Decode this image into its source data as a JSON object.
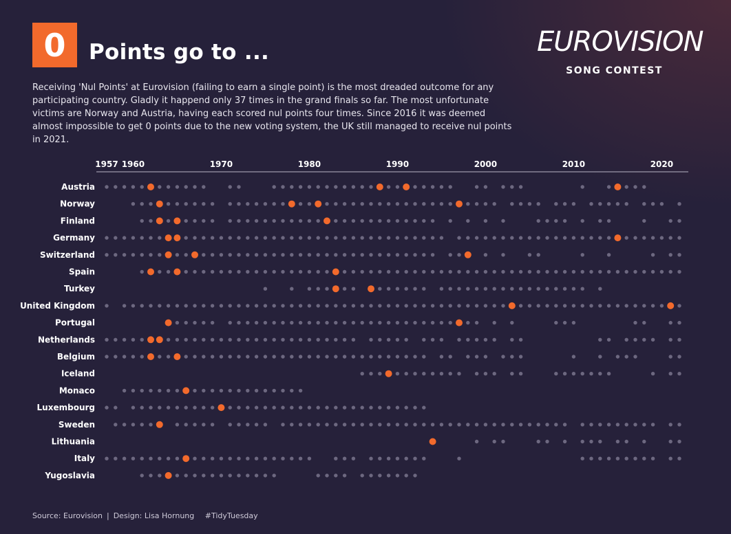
{
  "header": {
    "badge": "0",
    "title": "Points go to ...",
    "description": "Receiving 'Nul Points' at Eurovision (failing to earn a single point) is the most dreaded outcome for any participating country. Gladly it happend only 37 times in the grand finals so far. The most unfortunate victims are Norway and Austria, having each scored nul points four times. Since 2016 it was deemed almost impossible to get 0 points due to the new voting system, the UK still managed to receive nul points in 2021."
  },
  "logo": {
    "word": "EUROVISION",
    "sub": "SONG CONTEST"
  },
  "footer": {
    "source": "Source: Eurovision",
    "design": "Design: Lisa Hornung",
    "tag": "#TidyTuesday"
  },
  "colors": {
    "background": "#26213a",
    "accent": "#f26a2c",
    "participation": "#6d6880",
    "axis": "#b9b5c6"
  },
  "chart_data": {
    "type": "scatter",
    "xlim": [
      1957,
      2022
    ],
    "x_ticks": [
      1957,
      1960,
      1970,
      1980,
      1990,
      2000,
      2010,
      2020
    ],
    "grid": false,
    "rows": [
      {
        "country": "Austria",
        "ranges": [
          [
            1957,
            1968
          ],
          [
            1971,
            1972
          ],
          [
            1976,
            1996
          ],
          [
            1999,
            2000
          ],
          [
            2002,
            2004
          ],
          [
            2011,
            2011
          ],
          [
            2014,
            2018
          ]
        ],
        "nul": [
          1962,
          1988,
          1991,
          2015
        ]
      },
      {
        "country": "Norway",
        "ranges": [
          [
            1960,
            1969
          ],
          [
            1971,
            2001
          ],
          [
            2003,
            2006
          ],
          [
            2008,
            2010
          ],
          [
            2012,
            2016
          ],
          [
            2018,
            2020
          ],
          [
            2022,
            2022
          ]
        ],
        "nul": [
          1963,
          1978,
          1981,
          1997
        ]
      },
      {
        "country": "Finland",
        "ranges": [
          [
            1961,
            1969
          ],
          [
            1971,
            1994
          ],
          [
            1996,
            1996
          ],
          [
            1998,
            1998
          ],
          [
            2000,
            2000
          ],
          [
            2002,
            2002
          ],
          [
            2006,
            2009
          ],
          [
            2011,
            2011
          ],
          [
            2013,
            2014
          ],
          [
            2018,
            2018
          ],
          [
            2021,
            2022
          ]
        ],
        "nul": [
          1963,
          1965,
          1982
        ]
      },
      {
        "country": "Germany",
        "ranges": [
          [
            1957,
            1995
          ],
          [
            1997,
            2022
          ]
        ],
        "nul": [
          1964,
          1965,
          2015
        ]
      },
      {
        "country": "Switzerland",
        "ranges": [
          [
            1957,
            1994
          ],
          [
            1996,
            1998
          ],
          [
            2000,
            2000
          ],
          [
            2002,
            2002
          ],
          [
            2005,
            2006
          ],
          [
            2011,
            2011
          ],
          [
            2014,
            2014
          ],
          [
            2019,
            2019
          ],
          [
            2021,
            2022
          ]
        ],
        "nul": [
          1964,
          1967,
          1998
        ]
      },
      {
        "country": "Spain",
        "ranges": [
          [
            1961,
            2022
          ]
        ],
        "nul": [
          1962,
          1965,
          1983
        ]
      },
      {
        "country": "Turkey",
        "ranges": [
          [
            1975,
            1975
          ],
          [
            1978,
            1978
          ],
          [
            1980,
            1985
          ],
          [
            1987,
            1993
          ],
          [
            1995,
            2011
          ],
          [
            2013,
            2013
          ]
        ],
        "nul": [
          1983,
          1987
        ]
      },
      {
        "country": "United Kingdom",
        "ranges": [
          [
            1957,
            1957
          ],
          [
            1959,
            2022
          ]
        ],
        "nul": [
          2003,
          2021
        ]
      },
      {
        "country": "Portugal",
        "ranges": [
          [
            1964,
            1969
          ],
          [
            1971,
            1999
          ],
          [
            2001,
            2001
          ],
          [
            2003,
            2003
          ],
          [
            2008,
            2010
          ],
          [
            2017,
            2018
          ],
          [
            2021,
            2022
          ]
        ],
        "nul": [
          1964,
          1997
        ]
      },
      {
        "country": "Netherlands",
        "ranges": [
          [
            1957,
            1985
          ],
          [
            1987,
            1991
          ],
          [
            1993,
            1995
          ],
          [
            1997,
            2001
          ],
          [
            2003,
            2004
          ],
          [
            2013,
            2014
          ],
          [
            2016,
            2019
          ],
          [
            2021,
            2022
          ]
        ],
        "nul": [
          1962,
          1963
        ]
      },
      {
        "country": "Belgium",
        "ranges": [
          [
            1957,
            1993
          ],
          [
            1995,
            1996
          ],
          [
            1998,
            2000
          ],
          [
            2002,
            2004
          ],
          [
            2010,
            2010
          ],
          [
            2013,
            2013
          ],
          [
            2015,
            2017
          ],
          [
            2021,
            2022
          ]
        ],
        "nul": [
          1962,
          1965
        ]
      },
      {
        "country": "Iceland",
        "ranges": [
          [
            1986,
            1997
          ],
          [
            1999,
            2001
          ],
          [
            2003,
            2004
          ],
          [
            2008,
            2014
          ],
          [
            2019,
            2019
          ],
          [
            2021,
            2022
          ]
        ],
        "nul": [
          1989
        ]
      },
      {
        "country": "Monaco",
        "ranges": [
          [
            1959,
            1979
          ]
        ],
        "nul": [
          1966
        ]
      },
      {
        "country": "Luxembourg",
        "ranges": [
          [
            1957,
            1958
          ],
          [
            1960,
            1993
          ]
        ],
        "nul": [
          1970
        ]
      },
      {
        "country": "Sweden",
        "ranges": [
          [
            1958,
            1963
          ],
          [
            1965,
            1969
          ],
          [
            1971,
            1975
          ],
          [
            1977,
            2009
          ],
          [
            2011,
            2019
          ],
          [
            2021,
            2022
          ]
        ],
        "nul": [
          1963
        ]
      },
      {
        "country": "Lithuania",
        "ranges": [
          [
            1994,
            1994
          ],
          [
            1999,
            1999
          ],
          [
            2001,
            2002
          ],
          [
            2006,
            2007
          ],
          [
            2009,
            2009
          ],
          [
            2011,
            2013
          ],
          [
            2015,
            2016
          ],
          [
            2018,
            2018
          ],
          [
            2021,
            2022
          ]
        ],
        "nul": [
          1994
        ]
      },
      {
        "country": "Italy",
        "ranges": [
          [
            1957,
            1980
          ],
          [
            1983,
            1985
          ],
          [
            1987,
            1993
          ],
          [
            1997,
            1997
          ],
          [
            2011,
            2019
          ],
          [
            2021,
            2022
          ]
        ],
        "nul": [
          1966
        ]
      },
      {
        "country": "Yugoslavia",
        "ranges": [
          [
            1961,
            1976
          ],
          [
            1981,
            1984
          ],
          [
            1986,
            1992
          ]
        ],
        "nul": [
          1964
        ]
      }
    ]
  }
}
